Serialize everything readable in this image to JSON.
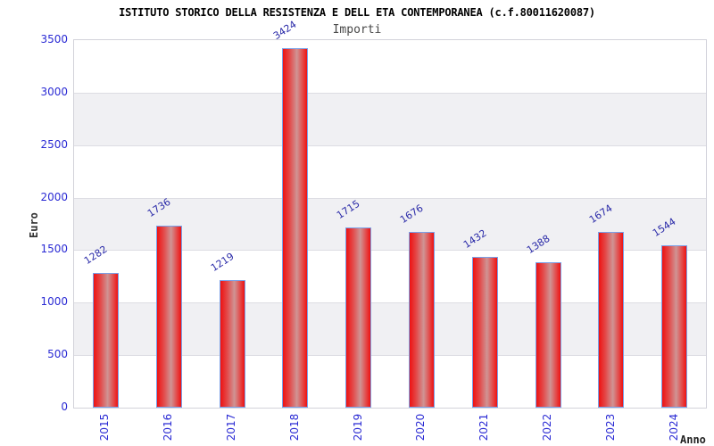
{
  "header": {
    "title": "ISTITUTO STORICO DELLA RESISTENZA E DELL ETA CONTEMPORANEA (c.f.80011620087)",
    "subtitle": "Importi"
  },
  "chart_data": {
    "type": "bar",
    "title": "ISTITUTO STORICO DELLA RESISTENZA E DELL ETA CONTEMPORANEA (c.f.80011620087)",
    "subtitle": "Importi",
    "categories": [
      "2015",
      "2016",
      "2017",
      "2018",
      "2019",
      "2020",
      "2021",
      "2022",
      "2023",
      "2024"
    ],
    "values": [
      1282,
      1736,
      1219,
      3424,
      1715,
      1676,
      1432,
      1388,
      1674,
      1544
    ],
    "xlabel": "Anno",
    "ylabel": "Euro",
    "ylim": [
      0,
      3500
    ],
    "yticks": [
      0,
      500,
      1000,
      1500,
      2000,
      2500,
      3000,
      3500
    ],
    "grid": "alternating-horizontal-bands",
    "legend_position": "none",
    "bar_value_labels_rotated": true,
    "colors": {
      "bar_edge": "#ee1212",
      "bar_center": "#cf9494",
      "bar_border": "#79a0e8",
      "axis_tick_label": "#2b2bd4",
      "value_label": "#2a2aa8",
      "band_gray": "#f0f0f3",
      "band_white": "#ffffff",
      "gridline": "#dddde3",
      "plot_border": "#d2d2da",
      "title": "#000000",
      "subtitle": "#484848"
    }
  }
}
